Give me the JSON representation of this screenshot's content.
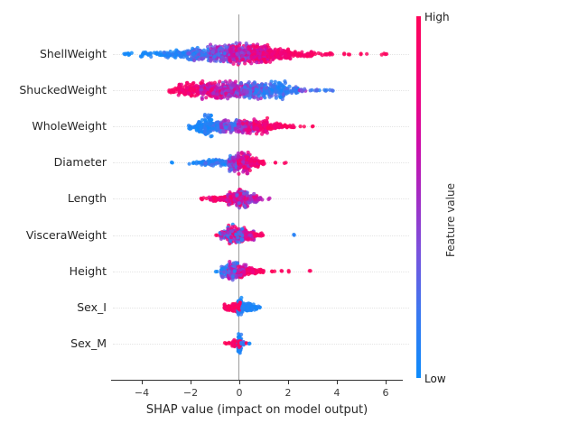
{
  "figure": {
    "background": "#ffffff",
    "xlabel": "SHAP value (impact on model output)",
    "colorbar": {
      "high_label": "High",
      "low_label": "Low",
      "axis_label": "Feature value"
    }
  },
  "colors": {
    "axis": "#303030",
    "zero_line": "#9b9b9b",
    "grid": "#e4e4e4",
    "text": "#262626",
    "low": "#0d8bfb",
    "high": "#ff0459"
  },
  "chart_data": {
    "type": "scatter",
    "subtype": "shap-beeswarm",
    "title": "",
    "xlabel": "SHAP value (impact on model output)",
    "ylabel": "",
    "xlim": [
      -5.3,
      6.7
    ],
    "x_tick_values": [
      -4,
      -2,
      0,
      2,
      4,
      6
    ],
    "x_tick_labels": [
      "−4",
      "−2",
      "0",
      "2",
      "4",
      "6"
    ],
    "grid": "dotted-horizontal-per-feature",
    "legend_position": "colorbar-right",
    "colorbar": {
      "low": "Low",
      "high": "High",
      "label": "Feature value"
    },
    "colormap_stops": [
      [
        0.0,
        "#0d8bfb"
      ],
      [
        0.18,
        "#3b78f0"
      ],
      [
        0.35,
        "#7a52dd"
      ],
      [
        0.5,
        "#a32cc4"
      ],
      [
        0.64,
        "#cc0daa"
      ],
      [
        0.78,
        "#ee0483"
      ],
      [
        1.0,
        "#ff0459"
      ]
    ],
    "features": [
      {
        "name": "ShellWeight",
        "shap_range": [
          -4.8,
          6.1
        ],
        "color_trend": "low-left high-right",
        "segments": [
          [
            -4.75,
            -4.35,
            8,
            3,
            0,
            0.06,
            0
          ],
          [
            -4.05,
            -3.1,
            26,
            4,
            0,
            0.1,
            1
          ],
          [
            -3.1,
            -2.1,
            70,
            6,
            0,
            0.18,
            1
          ],
          [
            -2.1,
            -1.2,
            130,
            9,
            0.02,
            0.4,
            1
          ],
          [
            -1.2,
            -0.4,
            170,
            12,
            0.1,
            0.65,
            1
          ],
          [
            -0.4,
            0.5,
            230,
            15,
            0.25,
            0.9,
            1
          ],
          [
            0.5,
            1.3,
            190,
            14,
            0.55,
            1,
            1
          ],
          [
            1.3,
            2.1,
            110,
            8,
            0.75,
            1,
            1
          ],
          [
            2.1,
            3.0,
            45,
            4,
            0.85,
            1,
            1
          ],
          [
            3.0,
            3.9,
            16,
            2.5,
            0.9,
            1,
            1
          ],
          [
            4.25,
            4.55,
            4,
            1.5,
            0.95,
            1,
            1
          ],
          [
            4.95,
            5.25,
            3,
            1.2,
            1,
            1,
            0
          ],
          [
            5.8,
            6.15,
            4,
            1.2,
            1,
            1,
            0
          ]
        ]
      },
      {
        "name": "ShuckedWeight",
        "shap_range": [
          -3.0,
          4.0
        ],
        "color_trend": "high-left low-right",
        "segments": [
          [
            -2.95,
            -2.5,
            16,
            3.5,
            0.9,
            1,
            1
          ],
          [
            -2.5,
            -1.6,
            120,
            10,
            0.75,
            1,
            1
          ],
          [
            -1.6,
            -0.7,
            180,
            12,
            0.45,
            0.95,
            1
          ],
          [
            -0.7,
            0.2,
            170,
            12,
            0.25,
            0.8,
            1
          ],
          [
            0.2,
            1.0,
            150,
            12,
            0.05,
            0.55,
            1
          ],
          [
            1.0,
            1.9,
            130,
            13,
            0,
            0.3,
            1
          ],
          [
            1.9,
            2.4,
            35,
            6,
            0,
            0.25,
            1
          ],
          [
            2.45,
            2.75,
            8,
            2.5,
            0.25,
            0.6,
            1
          ],
          [
            2.8,
            3.3,
            7,
            2,
            0,
            0.35,
            1
          ],
          [
            3.4,
            3.95,
            6,
            1.8,
            0,
            0.25,
            1
          ]
        ]
      },
      {
        "name": "WholeWeight",
        "shap_range": [
          -2.2,
          3.0
        ],
        "color_trend": "low-left high-right",
        "segments": [
          [
            -2.15,
            -1.75,
            14,
            3,
            0,
            0.1,
            1
          ],
          [
            -1.75,
            -1.45,
            45,
            9,
            0,
            0.12,
            1
          ],
          [
            -1.45,
            -1.1,
            75,
            17,
            0,
            0.15,
            1
          ],
          [
            -1.1,
            -0.75,
            60,
            8,
            0,
            0.3,
            1
          ],
          [
            -0.75,
            -0.05,
            120,
            8,
            0.1,
            0.55,
            1
          ],
          [
            -0.05,
            0.6,
            125,
            9,
            0.35,
            0.9,
            1
          ],
          [
            0.6,
            1.15,
            95,
            10,
            0.65,
            1,
            1
          ],
          [
            1.15,
            1.8,
            50,
            5,
            0.8,
            1,
            1
          ],
          [
            1.8,
            2.3,
            14,
            2.2,
            0.9,
            1,
            1
          ],
          [
            2.5,
            2.7,
            2,
            1,
            1,
            1,
            0
          ],
          [
            2.9,
            3.05,
            2,
            1,
            1,
            1,
            0
          ]
        ]
      },
      {
        "name": "Diameter",
        "shap_range": [
          -2.8,
          1.9
        ],
        "color_trend": "low-left high-right",
        "segments": [
          [
            -2.85,
            -2.72,
            2,
            1,
            0,
            0.05,
            0
          ],
          [
            -2.15,
            -1.55,
            10,
            2.2,
            0,
            0.1,
            1
          ],
          [
            -1.55,
            -0.45,
            90,
            4.5,
            0,
            0.25,
            1
          ],
          [
            -0.45,
            -0.05,
            85,
            11,
            0.1,
            0.65,
            1
          ],
          [
            -0.05,
            0.45,
            170,
            14,
            0.45,
            1,
            1
          ],
          [
            0.45,
            0.8,
            60,
            6,
            0.7,
            1,
            1
          ],
          [
            0.8,
            1.05,
            14,
            2.5,
            0.85,
            1,
            1
          ],
          [
            1.4,
            1.52,
            2,
            1,
            1,
            1,
            0
          ],
          [
            1.8,
            1.92,
            2,
            1,
            1,
            1,
            0
          ]
        ]
      },
      {
        "name": "Length",
        "shap_range": [
          -1.6,
          1.2
        ],
        "color_trend": "high-left mixed-center",
        "segments": [
          [
            -1.65,
            -1.3,
            6,
            1.8,
            0.9,
            1,
            1
          ],
          [
            -1.25,
            -0.5,
            55,
            4,
            0.75,
            1,
            1
          ],
          [
            -0.5,
            -0.1,
            95,
            9,
            0.45,
            0.95,
            1
          ],
          [
            -0.1,
            0.35,
            160,
            13,
            0.25,
            0.95,
            1
          ],
          [
            0.35,
            0.75,
            55,
            6.5,
            0.35,
            0.85,
            1
          ],
          [
            0.78,
            0.95,
            6,
            2,
            0.5,
            0.75,
            1
          ],
          [
            1.15,
            1.27,
            2,
            1,
            0.55,
            0.65,
            0
          ]
        ]
      },
      {
        "name": "VisceraWeight",
        "shap_range": [
          -1.0,
          2.2
        ],
        "color_trend": "mixed",
        "segments": [
          [
            -0.97,
            -0.88,
            2,
            1,
            0.95,
            1,
            0
          ],
          [
            -0.8,
            -0.5,
            45,
            6,
            0,
            1,
            1
          ],
          [
            -0.5,
            0.25,
            210,
            13,
            0,
            1,
            1
          ],
          [
            0.25,
            0.6,
            60,
            7,
            0.4,
            1,
            1
          ],
          [
            0.6,
            1.0,
            18,
            3,
            0.85,
            1,
            1
          ],
          [
            2.15,
            2.27,
            2,
            1.3,
            0,
            0.05,
            0
          ]
        ]
      },
      {
        "name": "Height",
        "shap_range": [
          -1.0,
          2.9
        ],
        "color_trend": "low-left high-right",
        "segments": [
          [
            -0.97,
            -0.87,
            2,
            1.2,
            0,
            0.05,
            0
          ],
          [
            -0.75,
            -0.45,
            55,
            8,
            0,
            0.4,
            1
          ],
          [
            -0.45,
            -0.05,
            150,
            13,
            0.05,
            0.75,
            1
          ],
          [
            -0.05,
            0.3,
            95,
            8,
            0.45,
            1,
            1
          ],
          [
            0.3,
            0.7,
            55,
            5,
            0.75,
            1,
            1
          ],
          [
            0.7,
            1.1,
            22,
            3,
            0.88,
            1,
            1
          ],
          [
            1.3,
            1.45,
            3,
            1.3,
            1,
            1,
            0
          ],
          [
            1.62,
            1.75,
            2,
            1,
            1,
            1,
            0
          ],
          [
            1.95,
            2.06,
            2,
            1,
            1,
            1,
            0
          ],
          [
            2.85,
            2.96,
            2,
            1,
            1,
            1,
            0
          ]
        ]
      },
      {
        "name": "Sex_I",
        "shap_range": [
          -0.6,
          0.85
        ],
        "color_trend": "high-left low-right",
        "segments": [
          [
            -0.62,
            -0.3,
            40,
            4.5,
            0.88,
            1,
            1
          ],
          [
            -0.3,
            -0.02,
            75,
            6.5,
            0.85,
            1,
            1
          ],
          [
            -0.06,
            0.1,
            70,
            13,
            0,
            0.15,
            1
          ],
          [
            -0.07,
            0.05,
            28,
            7,
            0.88,
            1,
            1
          ],
          [
            0.1,
            0.5,
            85,
            6,
            0,
            0.12,
            1
          ],
          [
            0.5,
            0.85,
            25,
            3.5,
            0,
            0.1,
            1
          ]
        ]
      },
      {
        "name": "Sex_M",
        "shap_range": [
          -0.6,
          0.4
        ],
        "color_trend": "mixed-compact",
        "segments": [
          [
            -0.62,
            -0.5,
            3,
            1.4,
            1,
            1,
            0
          ],
          [
            -0.44,
            -0.34,
            3,
            1.4,
            1,
            1,
            0
          ],
          [
            -0.3,
            -0.05,
            45,
            5,
            0.85,
            1,
            1
          ],
          [
            -0.05,
            0.08,
            65,
            14,
            0,
            0.15,
            1
          ],
          [
            -0.05,
            0.06,
            22,
            6,
            0.88,
            1,
            1
          ],
          [
            0.08,
            0.2,
            12,
            3,
            0,
            0.3,
            1
          ],
          [
            0.24,
            0.31,
            2,
            1.2,
            1,
            1,
            0
          ],
          [
            0.36,
            0.43,
            2,
            1.2,
            0,
            0.05,
            0
          ]
        ]
      }
    ]
  }
}
